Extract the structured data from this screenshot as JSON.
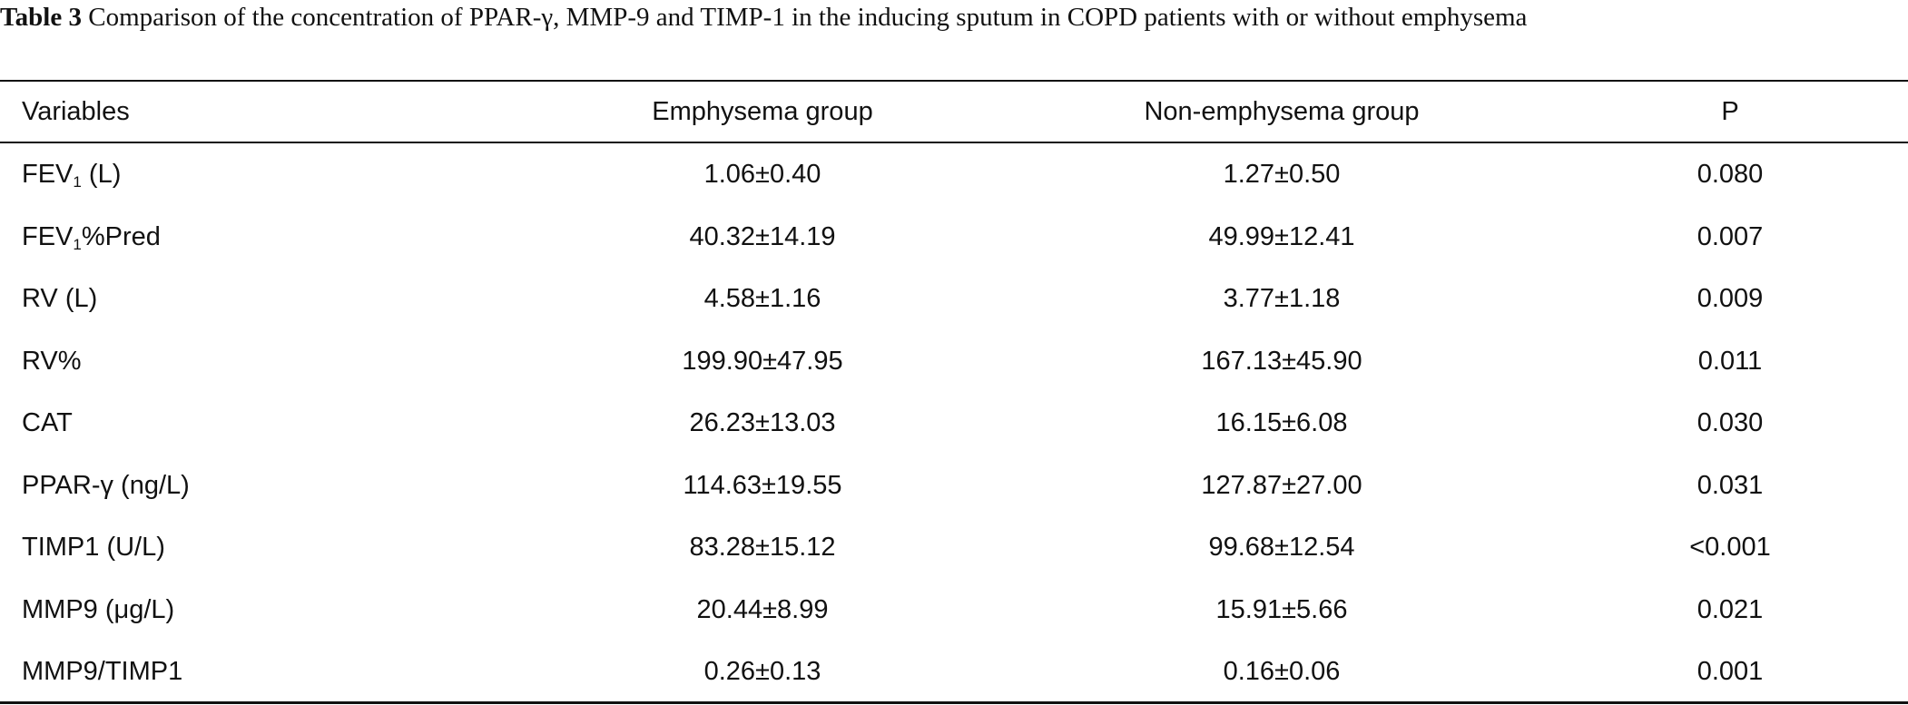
{
  "caption": {
    "label": "Table 3",
    "text": "Comparison of the concentration of PPAR-γ, MMP-9 and TIMP-1 in the inducing sputum in COPD patients with or without emphysema"
  },
  "table": {
    "header": [
      "Variables",
      "Emphysema group",
      "Non-emphysema group",
      "P"
    ],
    "rows": [
      [
        {
          "text": "FEV",
          "sub": "1",
          "suffix": " (L)"
        },
        "1.06±0.40",
        "1.27±0.50",
        "0.080"
      ],
      [
        {
          "text": "FEV",
          "sub": "1",
          "suffix": "%Pred"
        },
        "40.32±14.19",
        "49.99±12.41",
        "0.007"
      ],
      [
        "RV (L)",
        "4.58±1.16",
        "3.77±1.18",
        "0.009"
      ],
      [
        "RV%",
        "199.90±47.95",
        "167.13±45.90",
        "0.011"
      ],
      [
        "CAT",
        "26.23±13.03",
        "16.15±6.08",
        "0.030"
      ],
      [
        "PPAR-γ (ng/L)",
        "114.63±19.55",
        "127.87±27.00",
        "0.031"
      ],
      [
        "TIMP1 (U/L)",
        "83.28±15.12",
        "99.68±12.54",
        "<0.001"
      ],
      [
        "MMP9 (μg/L)",
        "20.44±8.99",
        "15.91±5.66",
        "0.021"
      ],
      [
        "MMP9/TIMP1",
        "0.26±0.13",
        "0.16±0.06",
        "0.001"
      ]
    ]
  }
}
